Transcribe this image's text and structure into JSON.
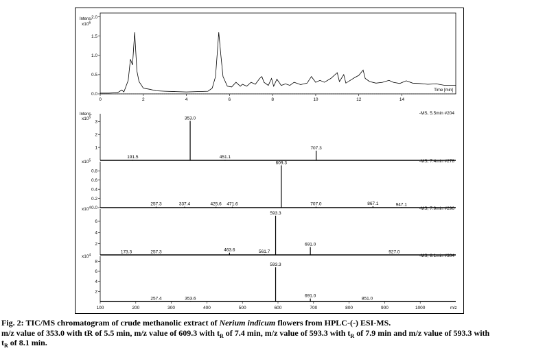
{
  "chart_data": [
    {
      "type": "line",
      "id": "tic",
      "ylabel": "Intens.",
      "yexp": "x10",
      "yexp_sup": "6",
      "xlabel": "Time [min]",
      "xlim": [
        0,
        16.5
      ],
      "ylim": [
        0,
        2.1
      ],
      "xticks": [
        "0",
        "2",
        "4",
        "6",
        "8",
        "10",
        "12",
        "14"
      ],
      "yticks": [
        "0.0",
        "0.5",
        "1.0",
        "1.5",
        "2.0"
      ],
      "x": [
        0,
        0.4,
        0.8,
        1.0,
        1.1,
        1.3,
        1.4,
        1.5,
        1.55,
        1.6,
        1.65,
        1.7,
        1.8,
        2.0,
        2.3,
        2.6,
        3.0,
        3.5,
        4.0,
        4.5,
        5.0,
        5.2,
        5.35,
        5.45,
        5.5,
        5.6,
        5.7,
        5.9,
        6.1,
        6.3,
        6.5,
        6.6,
        6.8,
        7.0,
        7.2,
        7.4,
        7.5,
        7.6,
        7.8,
        7.95,
        8.05,
        8.2,
        8.4,
        8.6,
        8.8,
        9.0,
        9.3,
        9.6,
        9.8,
        10.0,
        10.2,
        10.4,
        10.7,
        11.0,
        11.1,
        11.3,
        11.4,
        11.6,
        11.8,
        12.0,
        12.2,
        12.3,
        12.5,
        12.8,
        13.1,
        13.4,
        13.6,
        13.9,
        14.2,
        14.5,
        14.8,
        15.2,
        15.6,
        16.0,
        16.5
      ],
      "y": [
        0.02,
        0.02,
        0.03,
        0.1,
        0.05,
        0.35,
        0.9,
        0.75,
        1.2,
        1.6,
        1.1,
        0.6,
        0.32,
        0.15,
        0.12,
        0.08,
        0.07,
        0.06,
        0.05,
        0.06,
        0.07,
        0.15,
        0.45,
        1.2,
        1.6,
        1.0,
        0.45,
        0.2,
        0.18,
        0.3,
        0.2,
        0.25,
        0.2,
        0.3,
        0.25,
        0.4,
        0.45,
        0.3,
        0.22,
        0.4,
        0.2,
        0.38,
        0.22,
        0.26,
        0.22,
        0.3,
        0.24,
        0.28,
        0.45,
        0.3,
        0.35,
        0.3,
        0.4,
        0.55,
        0.32,
        0.5,
        0.28,
        0.35,
        0.42,
        0.48,
        0.62,
        0.4,
        0.32,
        0.28,
        0.3,
        0.35,
        0.3,
        0.27,
        0.34,
        0.28,
        0.27,
        0.25,
        0.26,
        0.22,
        0.22
      ]
    },
    {
      "type": "bar",
      "id": "ms1",
      "ylabel": "Intens.",
      "yexp": "x10",
      "yexp_sup": "5",
      "info": "-MS, 5.5min #204",
      "xlim": [
        100,
        1100
      ],
      "ylim": [
        0,
        3.6
      ],
      "yticks": [
        "1",
        "2",
        "3"
      ],
      "x": [
        191.5,
        353.0,
        451.1,
        707.3
      ],
      "y": [
        0.05,
        3.05,
        0.05,
        0.75
      ],
      "labels": [
        "191.5",
        "353.0",
        "451.1",
        "707.3"
      ]
    },
    {
      "type": "bar",
      "id": "ms2",
      "yexp": "x10",
      "yexp_sup": "5",
      "info": "-MS, 7.4min #278",
      "xlim": [
        100,
        1100
      ],
      "ylim": [
        0,
        1.0
      ],
      "yticks": [
        "0.0",
        "0.2",
        "0.4",
        "0.6",
        "0.8"
      ],
      "x": [
        257.3,
        337.4,
        425.6,
        471.6,
        609.3,
        707.0,
        867.1,
        947.1
      ],
      "y": [
        0.02,
        0.02,
        0.02,
        0.02,
        0.92,
        0.02,
        0.03,
        0.01
      ],
      "labels": [
        "257.3",
        "337.4",
        "425.6",
        "471.6",
        "609.3",
        "707.0",
        "867.1",
        "947.1"
      ]
    },
    {
      "type": "bar",
      "id": "ms3",
      "yexp": "x10",
      "yexp_sup": "4",
      "info": "-MS, 7.9min #296",
      "xlim": [
        100,
        1100
      ],
      "ylim": [
        0,
        8.2
      ],
      "yticks": [
        "2",
        "4",
        "6"
      ],
      "x": [
        173.3,
        257.3,
        463.6,
        561.7,
        593.3,
        691.0,
        927.0
      ],
      "y": [
        0.05,
        0.05,
        0.4,
        0.1,
        7.0,
        1.4,
        0.05
      ],
      "labels": [
        "173.3",
        "257.3",
        "463.6",
        "561.7",
        "593.3",
        "691.0",
        "927.0"
      ]
    },
    {
      "type": "bar",
      "id": "ms4",
      "yexp": "x10",
      "yexp_sup": "4",
      "info": "-MS, 8.1min #304",
      "xlabel": "m/z",
      "xlim": [
        100,
        1100
      ],
      "ylim": [
        0,
        9.0
      ],
      "xticks": [
        "100",
        "200",
        "300",
        "400",
        "500",
        "600",
        "700",
        "800",
        "900",
        "1000"
      ],
      "yticks": [
        "2",
        "4",
        "6",
        "8"
      ],
      "x": [
        257.4,
        353.6,
        593.3,
        691.0,
        851.0
      ],
      "y": [
        0.1,
        0.1,
        6.8,
        0.6,
        0.05
      ],
      "labels": [
        "257.4",
        "353.6",
        "593.3",
        "691.0",
        "851.0"
      ]
    }
  ],
  "caption": {
    "fig_label": "Fig. 2:",
    "line1_pre": " TIC/MS chromatogram of crude methanolic extract of ",
    "line1_italic": "Nerium indicum",
    "line1_post": " flowers from HPLC-(-) ESI-MS.",
    "line2_a": "m/z value of 353.0 with tR of 5.5 min, m/z value of 609.3 with t",
    "sub_r": "R",
    "line2_b": " of 7.4 min, m/z value of 593.3 with t",
    "line2_c": " of 7.9 min and m/z value of 593.3 with",
    "line3_t": "t",
    "line3_b": " of 8.1 min."
  },
  "colors": {
    "ink": "#000000",
    "frame": "#000000"
  }
}
